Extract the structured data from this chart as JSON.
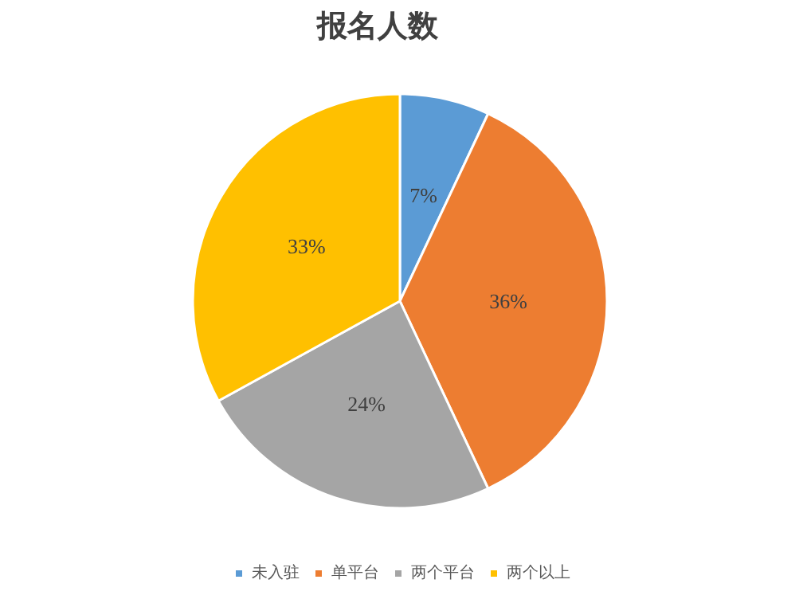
{
  "chart_data": {
    "type": "pie",
    "title": "报名人数",
    "categories": [
      "未入驻",
      "单平台",
      "两个平台",
      "两个以上"
    ],
    "values": [
      7,
      36,
      24,
      33
    ],
    "colors": [
      "#5b9bd5",
      "#ed7d31",
      "#a5a5a5",
      "#ffc000"
    ],
    "value_labels": [
      "7%",
      "36%",
      "24%",
      "33%"
    ],
    "legend": "bottom"
  }
}
